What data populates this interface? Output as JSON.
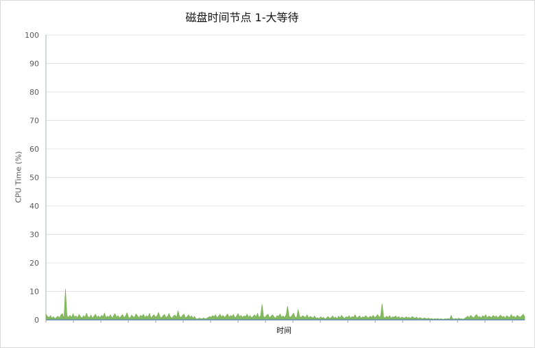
{
  "chart_data": {
    "type": "area",
    "title": "磁盘时间节点 1-大等待",
    "xlabel": "时间",
    "ylabel": "CPU Time (%)",
    "ylim": [
      0,
      100
    ],
    "yticks": [
      0,
      10,
      20,
      30,
      40,
      50,
      60,
      70,
      80,
      90,
      100
    ],
    "grid": true,
    "legend": "none",
    "series": [
      {
        "color": "#70ad47",
        "values": [
          2,
          1.2,
          0.8,
          1.5,
          0.6,
          1.1,
          0.4,
          0.9,
          1.3,
          0.7,
          1.8,
          2.2,
          0.5,
          10.8,
          1.4,
          0.9,
          1.6,
          0.8,
          2.1,
          1.0,
          1.4,
          0.7,
          1.9,
          1.2,
          0.6,
          1.5,
          0.9,
          2.3,
          1.1,
          0.8,
          1.7,
          0.6,
          1.3,
          2.0,
          0.9,
          1.4,
          0.7,
          1.6,
          1.1,
          2.4,
          0.8,
          1.3,
          1.0,
          1.8,
          0.6,
          1.4,
          2.2,
          0.9,
          1.5,
          0.7,
          1.2,
          1.9,
          0.8,
          1.3,
          2.5,
          1.0,
          0.6,
          1.7,
          1.1,
          0.9,
          2.1,
          1.4,
          0.7,
          1.6,
          1.2,
          2.0,
          0.8,
          1.5,
          1.0,
          2.3,
          0.6,
          1.3,
          1.8,
          0.9,
          1.4,
          2.6,
          1.1,
          0.7,
          1.5,
          1.9,
          0.8,
          1.2,
          2.2,
          1.0,
          0.6,
          1.4,
          1.7,
          0.9,
          3.2,
          1.3,
          0.8,
          1.6,
          2.0,
          0.7,
          1.1,
          1.8,
          0.9,
          1.4,
          0.6,
          1.2,
          0.4,
          0.3,
          0.6,
          0.5,
          0.3,
          0.7,
          0.4,
          0.5,
          0.8,
          1.2,
          0.9,
          1.5,
          1.1,
          1.8,
          0.7,
          1.3,
          2.0,
          1.0,
          1.6,
          0.8,
          1.4,
          2.1,
          0.9,
          1.5,
          1.2,
          1.9,
          0.7,
          1.3,
          2.2,
          1.0,
          1.6,
          0.8,
          1.4,
          1.1,
          2.0,
          0.9,
          1.5,
          0.7,
          1.2,
          1.8,
          1.0,
          2.3,
          0.8,
          1.4,
          5.4,
          1.1,
          0.9,
          1.6,
          2.0,
          0.7,
          1.3,
          1.8,
          1.0,
          0.6,
          1.5,
          1.2,
          2.1,
          0.9,
          1.4,
          0.8,
          1.7,
          4.8,
          1.2,
          0.9,
          1.6,
          2.4,
          1.0,
          0.7,
          3.6,
          1.3,
          0.8,
          1.5,
          1.1,
          0.9,
          1.8,
          0.7,
          1.2,
          1.0,
          0.6,
          1.4,
          0.5,
          0.8,
          0.4,
          1.1,
          0.6,
          0.9,
          0.3,
          0.7,
          1.2,
          0.5,
          0.8,
          1.4,
          0.6,
          1.0,
          0.4,
          1.3,
          0.7,
          1.6,
          0.9,
          0.5,
          1.1,
          0.8,
          1.5,
          0.6,
          1.2,
          0.9,
          1.8,
          0.7,
          1.0,
          1.4,
          0.6,
          1.1,
          0.8,
          1.5,
          1.0,
          0.7,
          1.3,
          0.9,
          1.6,
          0.8,
          1.2,
          1.9,
          0.9,
          1.4,
          5.7,
          1.0,
          0.7,
          1.3,
          0.8,
          1.5,
          0.6,
          1.1,
          0.9,
          1.4,
          0.7,
          1.2,
          0.5,
          1.0,
          0.8,
          0.6,
          1.1,
          0.7,
          0.9,
          0.5,
          1.2,
          0.8,
          0.6,
          1.0,
          0.4,
          0.8,
          0.6,
          0.3,
          0.7,
          0.5,
          0.4,
          0.6,
          0.3,
          0.5,
          0.2,
          0.4,
          0.3,
          0.5,
          0.2,
          0.4,
          0.3,
          0.2,
          0.4,
          0.3,
          0.5,
          0.2,
          1.6,
          0.4,
          0.3,
          0.5,
          0.2,
          0.6,
          0.3,
          0.4,
          0.2,
          0.5,
          0.9,
          1.3,
          0.8,
          1.6,
          1.1,
          0.7,
          1.4,
          1.9,
          0.9,
          1.2,
          0.6,
          1.5,
          1.0,
          1.8,
          0.7,
          1.3,
          1.1,
          0.8,
          1.6,
          1.0,
          1.4,
          0.7,
          1.2,
          1.7,
          0.9,
          1.3,
          0.6,
          1.5,
          1.1,
          0.8,
          1.9,
          1.0,
          1.3,
          0.7,
          1.6,
          1.2,
          0.9,
          1.4,
          2.0,
          1.1
        ]
      }
    ]
  }
}
